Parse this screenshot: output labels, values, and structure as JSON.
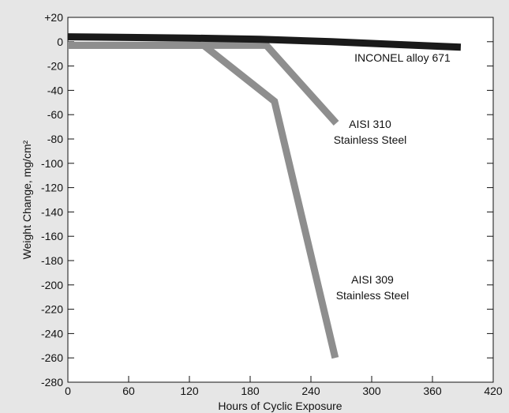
{
  "chart_data": {
    "type": "line",
    "title": "",
    "xlabel": "Hours of Cyclic Exposure",
    "ylabel": "Weight Change, mg/cm²",
    "xlim": [
      0,
      420
    ],
    "ylim": [
      -280,
      20
    ],
    "x_ticks": [
      0,
      60,
      120,
      180,
      240,
      300,
      360,
      420
    ],
    "x_tick_labels": [
      "0",
      "60",
      "120",
      "180",
      "240",
      "300",
      "360",
      "420"
    ],
    "y_ticks": [
      20,
      0,
      -20,
      -40,
      -60,
      -80,
      -100,
      -120,
      -140,
      -160,
      -180,
      -200,
      -220,
      -240,
      -260,
      -280
    ],
    "y_tick_labels": [
      "+20",
      "0",
      "-20",
      "-40",
      "-60",
      "-80",
      "-100",
      "-120",
      "-140",
      "-160",
      "-180",
      "-200",
      "-220",
      "-240",
      "-260",
      "-280"
    ],
    "grid": false,
    "series": [
      {
        "name": "INCONEL alloy 671",
        "color": "#1a1a1a",
        "points": [
          [
            0,
            4
          ],
          [
            60,
            3.5
          ],
          [
            120,
            3
          ],
          [
            190,
            2
          ],
          [
            260,
            0
          ],
          [
            330,
            -2.5
          ],
          [
            388,
            -4.5
          ]
        ],
        "label_lines": [
          "INCONEL alloy 671"
        ]
      },
      {
        "name": "AISI 310 Stainless Steel",
        "color": "#8e8e8e",
        "points": [
          [
            0,
            -3
          ],
          [
            100,
            -3
          ],
          [
            196,
            -3
          ],
          [
            265,
            -67
          ]
        ],
        "label_lines": [
          "AISI 310",
          "Stainless Steel"
        ]
      },
      {
        "name": "AISI 309 Stainless Steel",
        "color": "#8e8e8e",
        "points": [
          [
            0,
            -3
          ],
          [
            134,
            -3
          ],
          [
            204,
            -49
          ],
          [
            264,
            -260
          ]
        ],
        "label_lines": [
          "AISI 309",
          "Stainless Steel"
        ]
      }
    ]
  }
}
